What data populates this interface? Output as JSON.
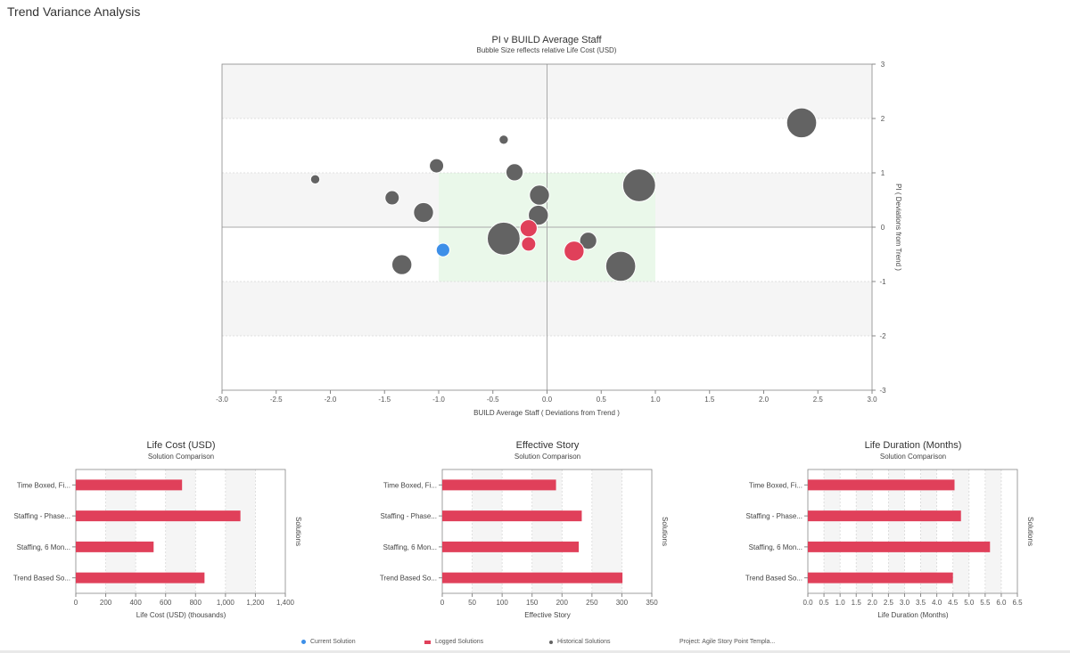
{
  "page": {
    "title": "Trend Variance Analysis"
  },
  "colors": {
    "historical": "#636363",
    "logged": "#e0405a",
    "current": "#3d8fe8",
    "target_zone": "#eaf8ea",
    "band": "#f5f5f5"
  },
  "chart_data": [
    {
      "type": "scatter",
      "id": "pi-v-build",
      "title": "PI v BUILD Average Staff",
      "subtitle": "Bubble Size reflects relative Life Cost (USD)",
      "xlabel": "BUILD Average Staff ( Deviations from Trend )",
      "ylabel": "PI ( Deviations from Trend )",
      "xlim": [
        -3,
        3
      ],
      "ylim": [
        -3,
        3
      ],
      "xticks": [
        "-3.0",
        "-2.5",
        "-2.0",
        "-1.5",
        "-1.0",
        "-0.5",
        "0.0",
        "0.5",
        "1.0",
        "1.5",
        "2.0",
        "2.5",
        "3.0"
      ],
      "yticks": [
        "3",
        "2",
        "1",
        "0",
        "-1",
        "-2",
        "-3"
      ],
      "target_zone": {
        "x": [
          -1,
          1
        ],
        "y": [
          -1,
          1
        ]
      },
      "series": [
        {
          "name": "Historical Solutions",
          "points": [
            {
              "x": 2.35,
              "y": 1.92,
              "size": 4.2
            },
            {
              "x": -0.4,
              "y": 1.61,
              "size": 1.3
            },
            {
              "x": -1.02,
              "y": 1.13,
              "size": 2.0
            },
            {
              "x": -0.3,
              "y": 1.01,
              "size": 2.4
            },
            {
              "x": -2.14,
              "y": 0.88,
              "size": 1.3
            },
            {
              "x": 0.85,
              "y": 0.77,
              "size": 4.6
            },
            {
              "x": -0.06,
              "y": 0.66,
              "size": 1.3
            },
            {
              "x": -0.07,
              "y": 0.59,
              "size": 2.8
            },
            {
              "x": -1.43,
              "y": 0.54,
              "size": 2.0
            },
            {
              "x": -1.14,
              "y": 0.27,
              "size": 2.8
            },
            {
              "x": -0.08,
              "y": 0.22,
              "size": 2.8
            },
            {
              "x": -0.4,
              "y": -0.21,
              "size": 4.6
            },
            {
              "x": 0.38,
              "y": -0.25,
              "size": 2.4
            },
            {
              "x": 0.68,
              "y": -0.72,
              "size": 4.2
            },
            {
              "x": -1.34,
              "y": -0.69,
              "size": 2.8
            }
          ]
        },
        {
          "name": "Logged Solutions",
          "points": [
            {
              "x": -0.17,
              "y": -0.02,
              "size": 2.4
            },
            {
              "x": -0.17,
              "y": -0.31,
              "size": 2.0
            },
            {
              "x": 0.25,
              "y": -0.44,
              "size": 2.8
            }
          ]
        },
        {
          "name": "Current Solution",
          "points": [
            {
              "x": -0.96,
              "y": -0.42,
              "size": 1.9
            }
          ]
        }
      ]
    },
    {
      "type": "bar",
      "id": "life-cost",
      "title": "Life Cost (USD)",
      "subtitle": "Solution Comparison",
      "xlabel": "Life Cost (USD) (thousands)",
      "ylabel": "Solutions",
      "xlim": [
        0,
        1400
      ],
      "xticks": [
        "0",
        "200",
        "400",
        "600",
        "800",
        "1,000",
        "1,200",
        "1,400"
      ],
      "categories": [
        "Time Boxed, Fi...",
        "Staffing - Phase...",
        "Staffing, 6 Mon...",
        "Trend Based So..."
      ],
      "values": [
        710,
        1100,
        520,
        860
      ]
    },
    {
      "type": "bar",
      "id": "effective-story",
      "title": "Effective Story",
      "subtitle": "Solution Comparison",
      "xlabel": "Effective Story",
      "ylabel": "Solutions",
      "xlim": [
        0,
        350
      ],
      "xticks": [
        "0",
        "50",
        "100",
        "150",
        "200",
        "250",
        "300",
        "350"
      ],
      "categories": [
        "Time Boxed, Fi...",
        "Staffing - Phase...",
        "Staffing, 6 Mon...",
        "Trend Based So..."
      ],
      "values": [
        190,
        233,
        228,
        301
      ]
    },
    {
      "type": "bar",
      "id": "life-duration",
      "title": "Life Duration (Months)",
      "subtitle": "Solution Comparison",
      "xlabel": "Life Duration (Months)",
      "ylabel": "Solutions",
      "xlim": [
        0,
        6.5
      ],
      "xticks": [
        "0.0",
        "0.5",
        "1.0",
        "1.5",
        "2.0",
        "2.5",
        "3.0",
        "3.5",
        "4.0",
        "4.5",
        "5.0",
        "5.5",
        "6.0",
        "6.5"
      ],
      "categories": [
        "Time Boxed, Fi...",
        "Staffing - Phase...",
        "Staffing, 6 Mon...",
        "Trend Based So..."
      ],
      "values": [
        4.55,
        4.75,
        5.65,
        4.5
      ]
    }
  ],
  "legend": {
    "current": "Current Solution",
    "logged": "Logged Solutions",
    "historical": "Historical Solutions",
    "project": "Project: Agile Story Point Templa..."
  }
}
